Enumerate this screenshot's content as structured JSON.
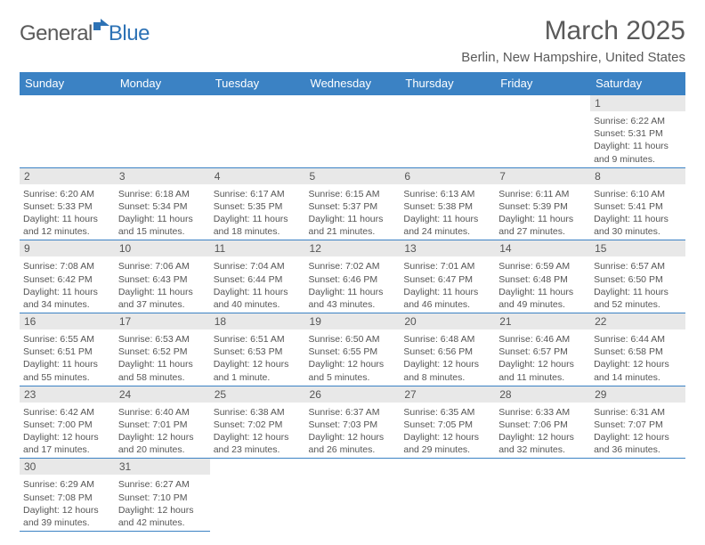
{
  "logo": {
    "general": "General",
    "blue": "Blue"
  },
  "title": "March 2025",
  "location": "Berlin, New Hampshire, United States",
  "colors": {
    "header_bg": "#3b82c4",
    "header_text": "#ffffff",
    "daynum_bg": "#e8e8e8",
    "border": "#3b82c4",
    "text": "#555555"
  },
  "days_of_week": [
    "Sunday",
    "Monday",
    "Tuesday",
    "Wednesday",
    "Thursday",
    "Friday",
    "Saturday"
  ],
  "weeks": [
    [
      null,
      null,
      null,
      null,
      null,
      null,
      {
        "n": "1",
        "sr": "6:22 AM",
        "ss": "5:31 PM",
        "dl": "11 hours and 9 minutes."
      }
    ],
    [
      {
        "n": "2",
        "sr": "6:20 AM",
        "ss": "5:33 PM",
        "dl": "11 hours and 12 minutes."
      },
      {
        "n": "3",
        "sr": "6:18 AM",
        "ss": "5:34 PM",
        "dl": "11 hours and 15 minutes."
      },
      {
        "n": "4",
        "sr": "6:17 AM",
        "ss": "5:35 PM",
        "dl": "11 hours and 18 minutes."
      },
      {
        "n": "5",
        "sr": "6:15 AM",
        "ss": "5:37 PM",
        "dl": "11 hours and 21 minutes."
      },
      {
        "n": "6",
        "sr": "6:13 AM",
        "ss": "5:38 PM",
        "dl": "11 hours and 24 minutes."
      },
      {
        "n": "7",
        "sr": "6:11 AM",
        "ss": "5:39 PM",
        "dl": "11 hours and 27 minutes."
      },
      {
        "n": "8",
        "sr": "6:10 AM",
        "ss": "5:41 PM",
        "dl": "11 hours and 30 minutes."
      }
    ],
    [
      {
        "n": "9",
        "sr": "7:08 AM",
        "ss": "6:42 PM",
        "dl": "11 hours and 34 minutes."
      },
      {
        "n": "10",
        "sr": "7:06 AM",
        "ss": "6:43 PM",
        "dl": "11 hours and 37 minutes."
      },
      {
        "n": "11",
        "sr": "7:04 AM",
        "ss": "6:44 PM",
        "dl": "11 hours and 40 minutes."
      },
      {
        "n": "12",
        "sr": "7:02 AM",
        "ss": "6:46 PM",
        "dl": "11 hours and 43 minutes."
      },
      {
        "n": "13",
        "sr": "7:01 AM",
        "ss": "6:47 PM",
        "dl": "11 hours and 46 minutes."
      },
      {
        "n": "14",
        "sr": "6:59 AM",
        "ss": "6:48 PM",
        "dl": "11 hours and 49 minutes."
      },
      {
        "n": "15",
        "sr": "6:57 AM",
        "ss": "6:50 PM",
        "dl": "11 hours and 52 minutes."
      }
    ],
    [
      {
        "n": "16",
        "sr": "6:55 AM",
        "ss": "6:51 PM",
        "dl": "11 hours and 55 minutes."
      },
      {
        "n": "17",
        "sr": "6:53 AM",
        "ss": "6:52 PM",
        "dl": "11 hours and 58 minutes."
      },
      {
        "n": "18",
        "sr": "6:51 AM",
        "ss": "6:53 PM",
        "dl": "12 hours and 1 minute."
      },
      {
        "n": "19",
        "sr": "6:50 AM",
        "ss": "6:55 PM",
        "dl": "12 hours and 5 minutes."
      },
      {
        "n": "20",
        "sr": "6:48 AM",
        "ss": "6:56 PM",
        "dl": "12 hours and 8 minutes."
      },
      {
        "n": "21",
        "sr": "6:46 AM",
        "ss": "6:57 PM",
        "dl": "12 hours and 11 minutes."
      },
      {
        "n": "22",
        "sr": "6:44 AM",
        "ss": "6:58 PM",
        "dl": "12 hours and 14 minutes."
      }
    ],
    [
      {
        "n": "23",
        "sr": "6:42 AM",
        "ss": "7:00 PM",
        "dl": "12 hours and 17 minutes."
      },
      {
        "n": "24",
        "sr": "6:40 AM",
        "ss": "7:01 PM",
        "dl": "12 hours and 20 minutes."
      },
      {
        "n": "25",
        "sr": "6:38 AM",
        "ss": "7:02 PM",
        "dl": "12 hours and 23 minutes."
      },
      {
        "n": "26",
        "sr": "6:37 AM",
        "ss": "7:03 PM",
        "dl": "12 hours and 26 minutes."
      },
      {
        "n": "27",
        "sr": "6:35 AM",
        "ss": "7:05 PM",
        "dl": "12 hours and 29 minutes."
      },
      {
        "n": "28",
        "sr": "6:33 AM",
        "ss": "7:06 PM",
        "dl": "12 hours and 32 minutes."
      },
      {
        "n": "29",
        "sr": "6:31 AM",
        "ss": "7:07 PM",
        "dl": "12 hours and 36 minutes."
      }
    ],
    [
      {
        "n": "30",
        "sr": "6:29 AM",
        "ss": "7:08 PM",
        "dl": "12 hours and 39 minutes."
      },
      {
        "n": "31",
        "sr": "6:27 AM",
        "ss": "7:10 PM",
        "dl": "12 hours and 42 minutes."
      },
      null,
      null,
      null,
      null,
      null
    ]
  ],
  "labels": {
    "sunrise": "Sunrise:",
    "sunset": "Sunset:",
    "daylight": "Daylight:"
  }
}
